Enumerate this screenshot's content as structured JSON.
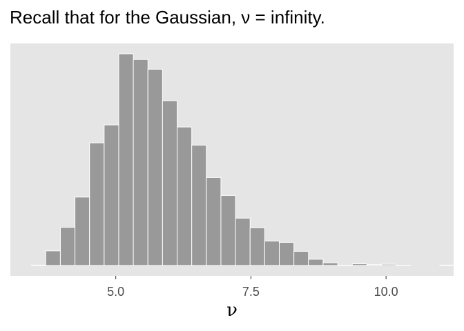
{
  "title": "Recall that for the Gaussian, ν = infinity.",
  "chart_data": {
    "type": "bar",
    "subtype": "histogram",
    "xlabel": "ν",
    "ylabel": "",
    "xlim": [
      3.05,
      11.25
    ],
    "ylim": [
      0,
      1015
    ],
    "x_ticks": [
      5.0,
      7.5,
      10.0
    ],
    "x_tick_labels": [
      "5.0",
      "7.5",
      "10.0"
    ],
    "y_axis_shown": false,
    "grid": false,
    "background_color": "#e5e5e5",
    "bar_color": "#999999",
    "bar_outline_color": "#ffffff",
    "bin_width": 0.27,
    "bins": [
      {
        "x": 3.57,
        "count": 2
      },
      {
        "x": 3.84,
        "count": 70
      },
      {
        "x": 4.11,
        "count": 183
      },
      {
        "x": 4.38,
        "count": 328
      },
      {
        "x": 4.65,
        "count": 588
      },
      {
        "x": 4.92,
        "count": 674
      },
      {
        "x": 5.19,
        "count": 1015
      },
      {
        "x": 5.46,
        "count": 988
      },
      {
        "x": 5.73,
        "count": 941
      },
      {
        "x": 6.0,
        "count": 790
      },
      {
        "x": 6.27,
        "count": 664
      },
      {
        "x": 6.54,
        "count": 577
      },
      {
        "x": 6.81,
        "count": 422
      },
      {
        "x": 7.08,
        "count": 336
      },
      {
        "x": 7.35,
        "count": 227
      },
      {
        "x": 7.62,
        "count": 181
      },
      {
        "x": 7.89,
        "count": 117
      },
      {
        "x": 8.16,
        "count": 111
      },
      {
        "x": 8.43,
        "count": 68
      },
      {
        "x": 8.7,
        "count": 30
      },
      {
        "x": 8.97,
        "count": 13
      },
      {
        "x": 9.24,
        "count": 1
      },
      {
        "x": 9.51,
        "count": 8
      },
      {
        "x": 9.78,
        "count": 4
      },
      {
        "x": 10.05,
        "count": 6
      },
      {
        "x": 10.32,
        "count": 1
      },
      {
        "x": 10.59,
        "count": 0
      },
      {
        "x": 10.86,
        "count": 0
      },
      {
        "x": 11.13,
        "count": 2
      }
    ]
  }
}
